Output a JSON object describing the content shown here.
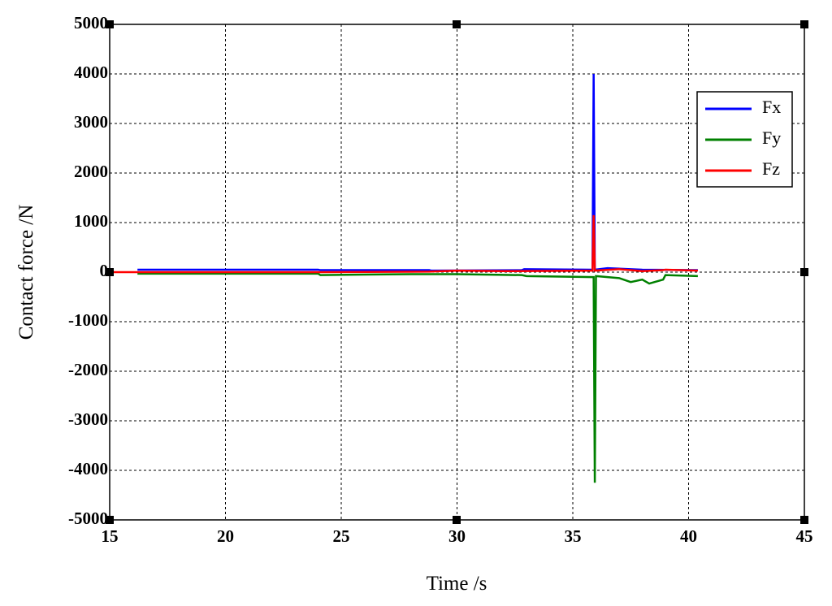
{
  "chart_data": {
    "type": "line",
    "xlabel": "Time /s",
    "ylabel": "Contact force /N",
    "xlim": [
      15,
      45
    ],
    "xticks": [
      15,
      20,
      25,
      30,
      35,
      40,
      45
    ],
    "ylim": [
      -5000,
      5000
    ],
    "yticks": [
      -5000,
      -4000,
      -3000,
      -2000,
      -1000,
      0,
      1000,
      2000,
      3000,
      4000,
      5000
    ],
    "grid": true,
    "legend": "upper right",
    "series": [
      {
        "name": "Fx",
        "color": "#0000ff",
        "x": [
          16.2,
          24,
          24.1,
          28.8,
          28.9,
          32.8,
          32.9,
          35.85,
          35.9,
          35.95,
          36.5,
          38,
          40.4
        ],
        "values": [
          50,
          50,
          40,
          40,
          30,
          40,
          60,
          50,
          4000,
          50,
          80,
          50,
          40
        ]
      },
      {
        "name": "Fy",
        "color": "#008000",
        "x": [
          16.2,
          24,
          24.1,
          26,
          28,
          30,
          32.8,
          33,
          35.9,
          35.95,
          36,
          37,
          37.5,
          38,
          38.3,
          38.9,
          39,
          40.4
        ],
        "values": [
          -30,
          -30,
          -60,
          -50,
          -40,
          -40,
          -60,
          -80,
          -100,
          -4250,
          -80,
          -120,
          -200,
          -150,
          -230,
          -150,
          -60,
          -80
        ]
      },
      {
        "name": "Fz",
        "color": "#ff0000",
        "x": [
          15,
          24,
          28.8,
          30,
          32,
          35.85,
          35.9,
          35.95,
          37,
          38,
          38.9,
          39,
          40.4
        ],
        "values": [
          0,
          0,
          10,
          30,
          20,
          30,
          1150,
          30,
          60,
          20,
          40,
          50,
          30
        ]
      }
    ]
  }
}
